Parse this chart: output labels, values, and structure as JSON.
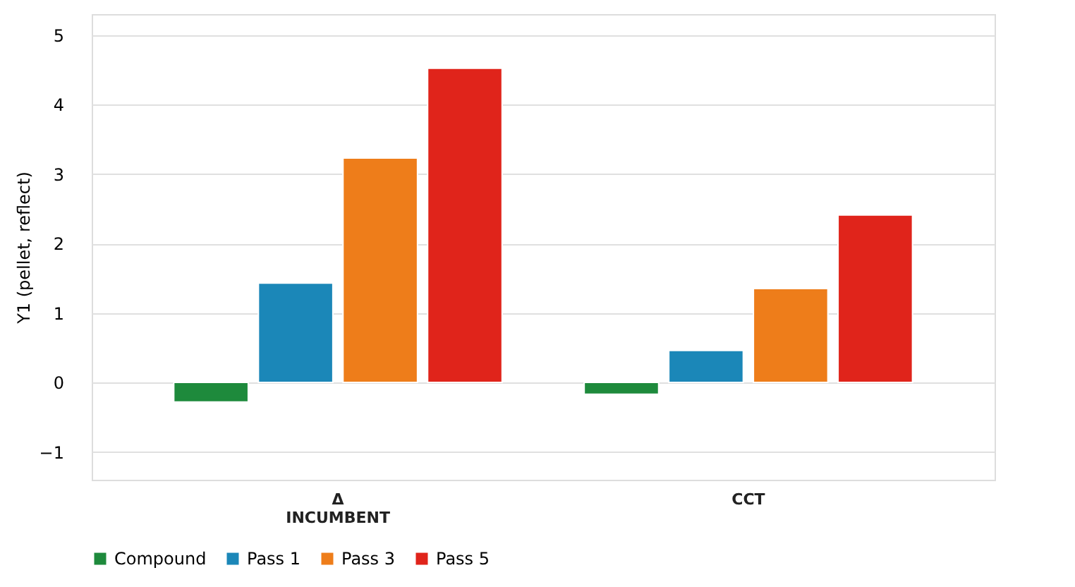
{
  "chart_data": {
    "type": "bar",
    "ylabel": "Y1 (pellet, reflect)",
    "categories": [
      "Δ\nINCUMBENT",
      "CCT"
    ],
    "series": [
      {
        "name": "Compound",
        "color": "#1e8a3c",
        "values": [
          -0.28,
          -0.17
        ]
      },
      {
        "name": "Pass 1",
        "color": "#1b87b8",
        "values": [
          1.43,
          0.46
        ]
      },
      {
        "name": "Pass 3",
        "color": "#ee7d1a",
        "values": [
          3.23,
          1.35
        ]
      },
      {
        "name": "Pass 5",
        "color": "#e0241b",
        "values": [
          4.52,
          2.41
        ]
      }
    ],
    "ylim": [
      -1.4,
      5.3
    ],
    "yticks": [
      -1,
      0,
      1,
      2,
      3,
      4,
      5
    ],
    "grid": "y",
    "legend": "bottom"
  }
}
